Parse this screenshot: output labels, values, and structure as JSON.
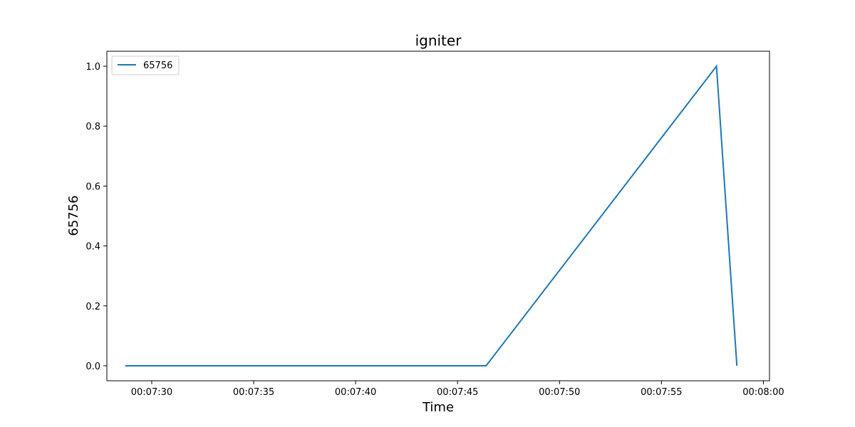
{
  "chart_data": {
    "type": "line",
    "title": "igniter",
    "xlabel": "Time",
    "ylabel": "65756",
    "x_ticks": [
      "00:07:30",
      "00:07:35",
      "00:07:40",
      "00:07:45",
      "00:07:50",
      "00:07:55",
      "00:08:00"
    ],
    "y_ticks": [
      "0.0",
      "0.2",
      "0.4",
      "0.6",
      "0.8",
      "1.0"
    ],
    "xlim": [
      "00:07:27.8",
      "00:08:00.3"
    ],
    "ylim": [
      -0.05,
      1.05
    ],
    "grid": false,
    "legend_position": "upper-left",
    "series": [
      {
        "name": "65756",
        "color": "#1f77b4",
        "x": [
          "00:07:28.7",
          "00:07:46.4",
          "00:07:57.7",
          "00:07:58.7"
        ],
        "y": [
          0.0,
          0.0,
          1.0,
          0.0
        ]
      }
    ]
  }
}
